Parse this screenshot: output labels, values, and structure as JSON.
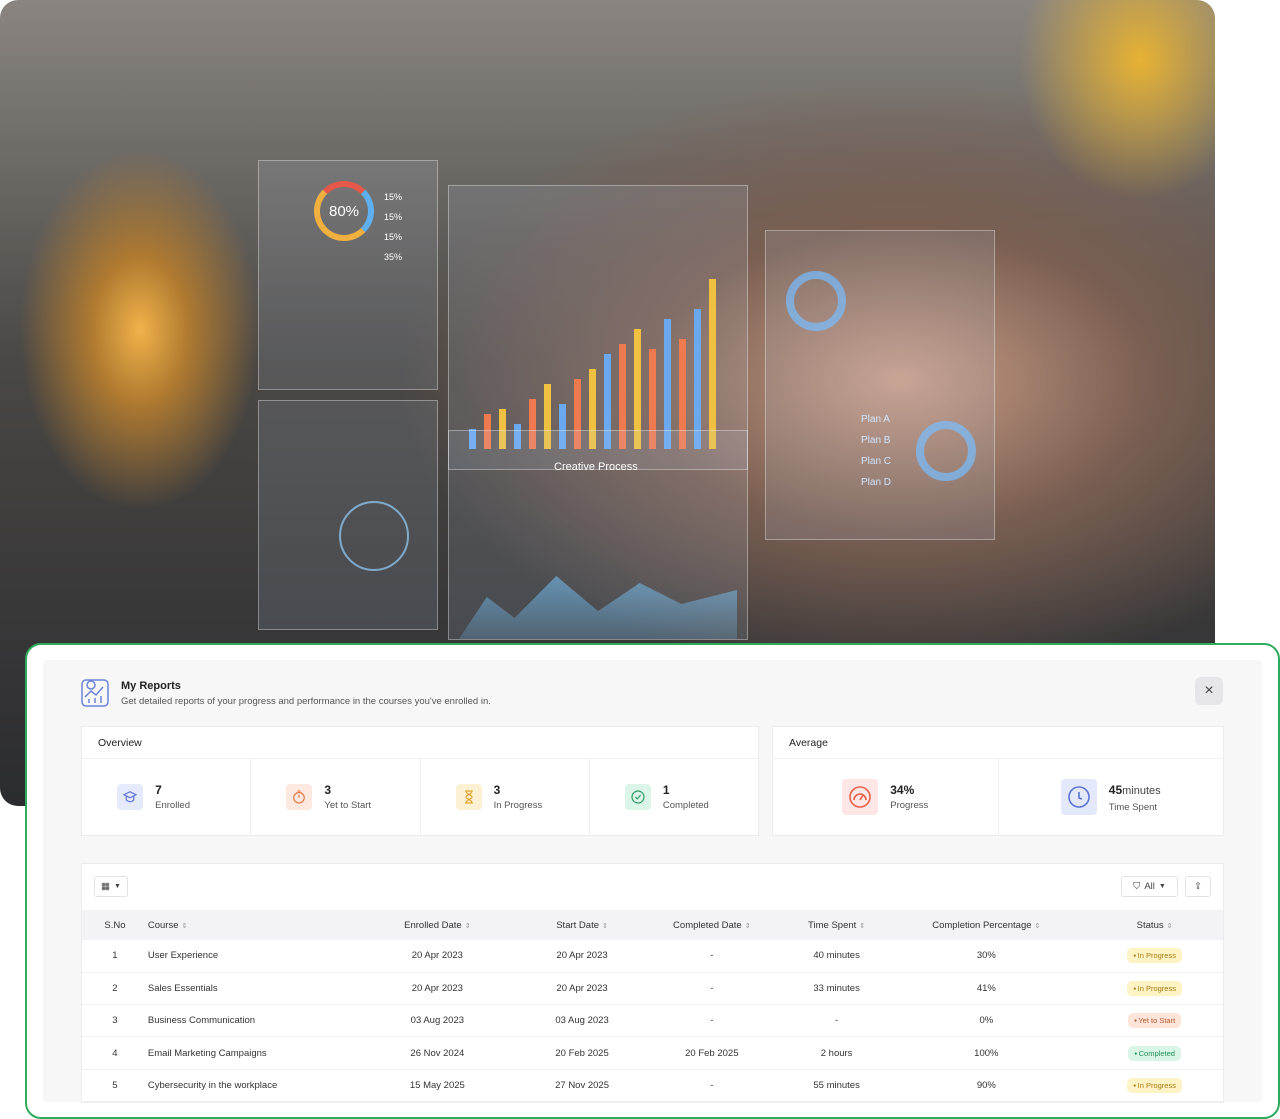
{
  "photo": {
    "ring_value": "80%",
    "ring_labels": [
      "15%",
      "15%",
      "15%",
      "35%"
    ],
    "process_title": "Creative Process",
    "plans": [
      "Plan A",
      "Plan B",
      "Plan C",
      "Plan D"
    ]
  },
  "header": {
    "title": "My Reports",
    "subtitle": "Get detailed reports of your progress and performance in the courses you've enrolled in.",
    "close_icon": "×"
  },
  "overview": {
    "title": "Overview",
    "items": [
      {
        "value": "7",
        "label": "Enrolled",
        "icon": "graduation-cap-icon",
        "color": "#5b6fd6",
        "bg": "#e6ebfb"
      },
      {
        "value": "3",
        "label": "Yet to Start",
        "icon": "stopwatch-icon",
        "color": "#e57a4a",
        "bg": "#fde9df"
      },
      {
        "value": "3",
        "label": "In Progress",
        "icon": "hourglass-icon",
        "color": "#e2a22a",
        "bg": "#fdf1d3"
      },
      {
        "value": "1",
        "label": "Completed",
        "icon": "check-badge-icon",
        "color": "#2e9a66",
        "bg": "#dcf5e9"
      }
    ]
  },
  "average": {
    "title": "Average",
    "progress": {
      "value": "34%",
      "label": "Progress"
    },
    "time": {
      "value": "45",
      "unit": "minutes",
      "label": "Time Spent"
    }
  },
  "toolbar": {
    "filter_label": "All"
  },
  "table": {
    "columns": [
      "S.No",
      "Course",
      "Enrolled Date",
      "Start Date",
      "Completed Date",
      "Time Spent",
      "Completion Percentage",
      "Status"
    ],
    "rows": [
      [
        "1",
        "User Experience",
        "20 Apr 2023",
        "20 Apr 2023",
        "-",
        "40 minutes",
        "30%",
        "In Progress"
      ],
      [
        "2",
        "Sales Essentials",
        "20 Apr 2023",
        "20 Apr 2023",
        "-",
        "33 minutes",
        "41%",
        "In Progress"
      ],
      [
        "3",
        "Business Communication",
        "03 Aug 2023",
        "03 Aug 2023",
        "-",
        "-",
        "0%",
        "Yet to Start"
      ],
      [
        "4",
        "Email Marketing Campaigns",
        "26 Nov 2024",
        "20 Feb 2025",
        "20 Feb 2025",
        "2 hours",
        "100%",
        "Completed"
      ],
      [
        "5",
        "Cybersecurity in the workplace",
        "15 May 2025",
        "27 Nov 2025",
        "-",
        "55 minutes",
        "90%",
        "In Progress"
      ]
    ]
  },
  "status_colors": {
    "In Progress": [
      "#fdf3c4",
      "#a77a10"
    ],
    "Yet to Start": [
      "#fde5da",
      "#b8562c"
    ],
    "Completed": [
      "#d9f5e6",
      "#23905a"
    ]
  }
}
